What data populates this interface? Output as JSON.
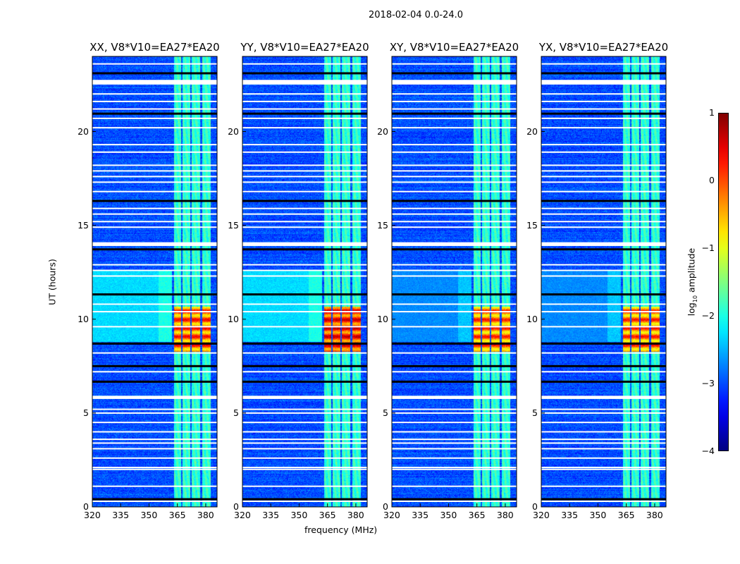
{
  "suptitle": "2018-02-04 0.0-24.0",
  "ylabel": "UT (hours)",
  "xlabel": "frequency (MHz)",
  "colorbar": {
    "label_prefix": "log",
    "label_sub": "10",
    "label_suffix": " amplitude",
    "range": [
      -4,
      1
    ],
    "ticks": [
      "1",
      "0",
      "−1",
      "−2",
      "−3",
      "−4"
    ],
    "tick_values": [
      1,
      0,
      -1,
      -2,
      -3,
      -4
    ],
    "colormap": "jet"
  },
  "chart_data": [
    {
      "type": "heatmap",
      "title": "XX, V8*V10=EA27*EA20",
      "burst_level": -0.2,
      "cyan_haze": -2.3
    },
    {
      "type": "heatmap",
      "title": "YY, V8*V10=EA27*EA20",
      "burst_level": 0.1,
      "cyan_haze": -2.3
    },
    {
      "type": "heatmap",
      "title": "XY, V8*V10=EA27*EA20",
      "burst_level": -0.3,
      "cyan_haze": -2.7
    },
    {
      "type": "heatmap",
      "title": "YX, V8*V10=EA27*EA20",
      "burst_level": -0.3,
      "cyan_haze": -2.7
    }
  ],
  "axes": {
    "xlim": [
      320,
      386
    ],
    "ylim": [
      0,
      24
    ],
    "xticks": [
      320,
      335,
      350,
      365,
      380
    ],
    "xtick_labels": [
      "320",
      "335",
      "350",
      "365",
      "380"
    ],
    "yticks": [
      0,
      5,
      10,
      15,
      20
    ],
    "ytick_labels": [
      "0",
      "5",
      "10",
      "15",
      "20"
    ]
  },
  "content": {
    "background_log_amp": -3.0,
    "rfi_channels_mhz": [
      [
        363.0,
        366.8
      ],
      [
        367.5,
        371.8
      ],
      [
        372.5,
        377.0
      ],
      [
        377.8,
        382.3
      ]
    ],
    "rfi_channel_level": -1.9,
    "burst_time_hours": [
      8.3,
      10.7
    ],
    "haze_time_hours": [
      8.8,
      12.6
    ],
    "flagged_blocks_hours": [
      [
        22.5,
        22.75
      ],
      [
        13.9,
        14.1
      ],
      [
        5.75,
        5.92
      ]
    ],
    "flagged_lines_hours": [
      0.3,
      1.1,
      2.0,
      2.1,
      2.6,
      3.1,
      3.4,
      3.6,
      4.0,
      4.5,
      5.0,
      5.2,
      7.2,
      8.2,
      9.6,
      10.4,
      10.8,
      12.3,
      12.6,
      12.9,
      14.9,
      15.2,
      15.6,
      15.9,
      16.8,
      17.3,
      17.6,
      17.9,
      18.2,
      18.9,
      19.3,
      20.2,
      20.7,
      21.2,
      21.6,
      22.0,
      23.6
    ],
    "dark_lines_hours": [
      23.1,
      20.95,
      16.3,
      13.72,
      11.32,
      8.7,
      7.5,
      6.67,
      0.41
    ]
  }
}
